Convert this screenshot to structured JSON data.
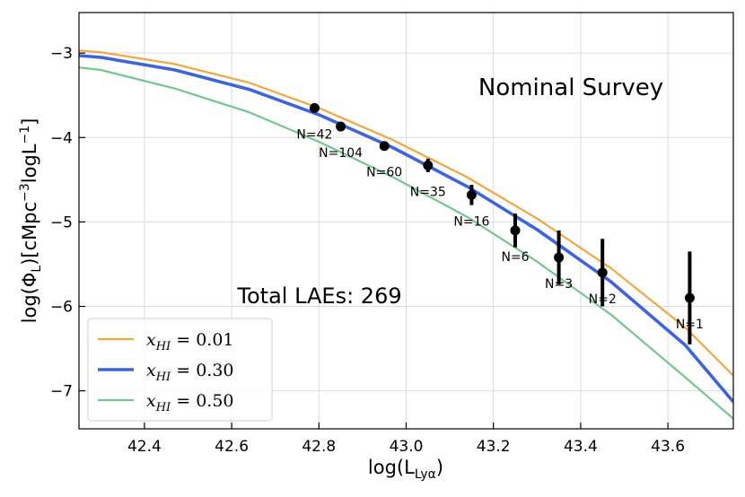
{
  "chart_data": {
    "type": "line",
    "xlabel_main": "log(L",
    "xlabel_sub": "Lyα",
    "xlabel_end": ")",
    "ylabel_parts": [
      "log(Φ",
      "L",
      ")[cMpc",
      "−3",
      "logL",
      "−1",
      "]"
    ],
    "xlim": [
      42.25,
      43.75
    ],
    "ylim": [
      -7.45,
      -2.52
    ],
    "xticks": [
      42.4,
      42.6,
      42.8,
      43.0,
      43.2,
      43.4,
      43.6
    ],
    "xtick_labels": [
      "42.4",
      "42.6",
      "42.8",
      "43.0",
      "43.2",
      "43.4",
      "43.6"
    ],
    "yticks": [
      -3,
      -4,
      -5,
      -6,
      -7
    ],
    "ytick_labels": [
      "−3",
      "−4",
      "−5",
      "−6",
      "−7"
    ],
    "grid": true,
    "title_annotation": "Nominal Survey",
    "total_annotation": "Total LAEs: 269",
    "series": [
      {
        "name": "x_HI = 0.01",
        "legend_label": "x",
        "legend_sub": "HI",
        "legend_value": " = 0.01",
        "color": "#f5a540",
        "x": [
          42.25,
          42.3,
          42.47,
          42.64,
          42.8,
          42.97,
          43.14,
          43.3,
          43.47,
          43.64,
          43.75
        ],
        "y": [
          -2.97,
          -2.99,
          -3.13,
          -3.35,
          -3.65,
          -4.03,
          -4.47,
          -4.96,
          -5.55,
          -6.25,
          -6.82
        ]
      },
      {
        "name": "x_HI = 0.30",
        "legend_label": "x",
        "legend_sub": "HI",
        "legend_value": " = 0.30",
        "color": "#3e64d9",
        "x": [
          42.25,
          42.3,
          42.47,
          42.64,
          42.8,
          42.97,
          43.14,
          43.3,
          43.47,
          43.64,
          43.75
        ],
        "y": [
          -3.03,
          -3.05,
          -3.2,
          -3.43,
          -3.73,
          -4.12,
          -4.58,
          -5.09,
          -5.71,
          -6.46,
          -7.13
        ]
      },
      {
        "name": "x_HI = 0.50",
        "legend_label": "x",
        "legend_sub": "HI",
        "legend_value": " = 0.50",
        "color": "#74c68f",
        "x": [
          42.25,
          42.3,
          42.47,
          42.64,
          42.8,
          42.97,
          43.14,
          43.3,
          43.47,
          43.64,
          43.75
        ],
        "y": [
          -3.17,
          -3.2,
          -3.42,
          -3.7,
          -4.05,
          -4.47,
          -4.94,
          -5.47,
          -6.1,
          -6.84,
          -7.33
        ]
      }
    ],
    "points": [
      {
        "x": 42.79,
        "y": -3.65,
        "err": 0.03,
        "label": "N=42"
      },
      {
        "x": 42.85,
        "y": -3.87,
        "err": 0.04,
        "label": "N=104"
      },
      {
        "x": 42.95,
        "y": -4.1,
        "err": 0.05,
        "label": "N=60"
      },
      {
        "x": 43.05,
        "y": -4.33,
        "err": 0.08,
        "label": "N=35"
      },
      {
        "x": 43.15,
        "y": -4.68,
        "err": 0.12,
        "label": "N=16"
      },
      {
        "x": 43.25,
        "y": -5.1,
        "err": 0.2,
        "label": "N=6"
      },
      {
        "x": 43.35,
        "y": -5.42,
        "err": 0.32,
        "label": "N=3"
      },
      {
        "x": 43.45,
        "y": -5.6,
        "err": 0.4,
        "label": "N=2"
      },
      {
        "x": 43.65,
        "y": -5.9,
        "err": 0.55,
        "label": "N=1"
      }
    ]
  }
}
